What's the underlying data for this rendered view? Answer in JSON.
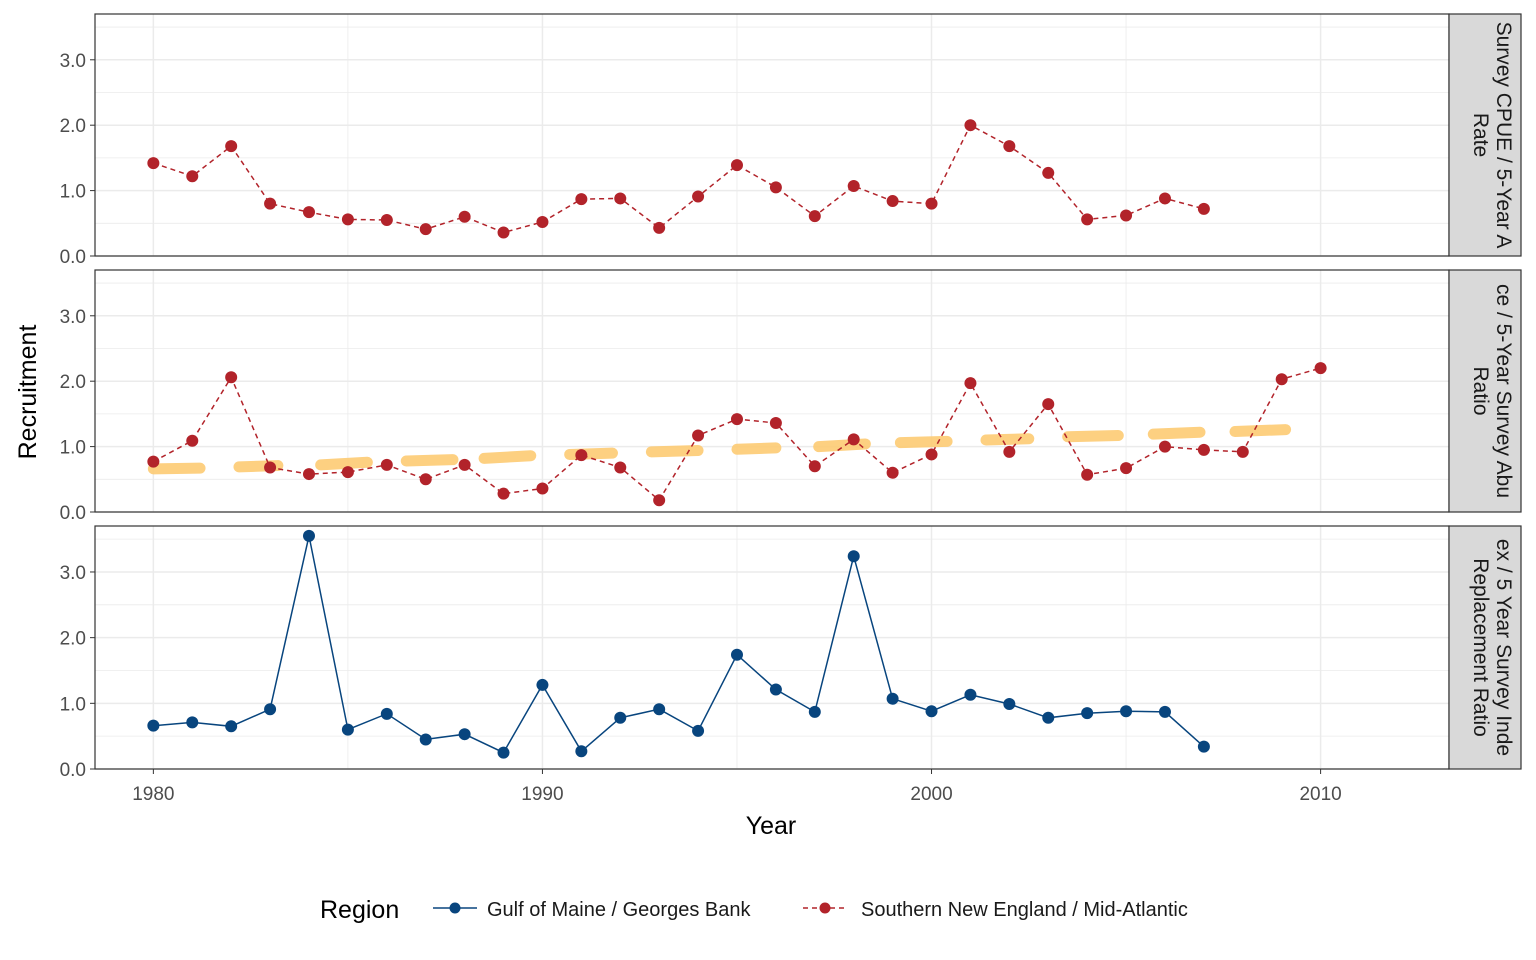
{
  "chart_data": {
    "type": "line",
    "xlabel": "Year",
    "ylabel": "Recruitment",
    "xlim": [
      1978.5,
      2013.3
    ],
    "ylim": [
      0,
      3.7
    ],
    "x_ticks": [
      1980,
      1990,
      2000,
      2010
    ],
    "x_tick_labels": [
      "1980",
      "1990",
      "2000",
      "2010"
    ],
    "y_ticks": [
      0,
      1,
      2,
      3
    ],
    "y_tick_labels": [
      "0.0",
      "1.0",
      "2.0",
      "3.0"
    ],
    "grid": true,
    "legend": {
      "title": "Region",
      "position": "bottom",
      "entries": [
        {
          "label": "Gulf of Maine / Georges Bank",
          "color": "#08457E",
          "line": "solid"
        },
        {
          "label": "Southern New England / Mid-Atlantic",
          "color": "#B2232A",
          "line": "dashed"
        }
      ]
    },
    "colors": {
      "gom": "#08457E",
      "sne": "#B2232A",
      "threshold": "#FDCB74",
      "strip_bg": "#D9D9D9",
      "grid": "#EBEBEB",
      "panel_border": "#333333"
    },
    "facets": [
      {
        "strip_lines": [
          "Survey CPUE / 5-Year A",
          "Rate"
        ],
        "series": [
          {
            "region": "Southern New England / Mid-Atlantic",
            "x": [
              1980,
              1981,
              1982,
              1983,
              1984,
              1985,
              1986,
              1987,
              1988,
              1989,
              1990,
              1991,
              1992,
              1993,
              1994,
              1995,
              1996,
              1997,
              1998,
              1999,
              2000,
              2001,
              2002,
              2003,
              2004,
              2005,
              2006,
              2007
            ],
            "y": [
              1.42,
              1.22,
              1.68,
              0.8,
              0.67,
              0.56,
              0.55,
              0.41,
              0.6,
              0.36,
              0.52,
              0.87,
              0.88,
              0.43,
              0.91,
              1.39,
              1.05,
              0.61,
              1.07,
              0.84,
              0.8,
              2.0,
              1.68,
              1.27,
              0.56,
              0.62,
              0.88,
              0.72
            ]
          }
        ]
      },
      {
        "strip_lines": [
          "ce / 5-Year Survey Abu",
          "Ratio"
        ],
        "threshold_segments": [
          {
            "x": [
              1980,
              1981.2
            ],
            "y": [
              0.66,
              0.67
            ]
          },
          {
            "x": [
              1982.2,
              1983.2
            ],
            "y": [
              0.69,
              0.71
            ]
          },
          {
            "x": [
              1984.3,
              1985.5
            ],
            "y": [
              0.72,
              0.76
            ]
          },
          {
            "x": [
              1986.5,
              1987.7
            ],
            "y": [
              0.78,
              0.8
            ]
          },
          {
            "x": [
              1988.5,
              1989.7
            ],
            "y": [
              0.82,
              0.86
            ]
          },
          {
            "x": [
              1990.7,
              1991.8
            ],
            "y": [
              0.88,
              0.9
            ]
          },
          {
            "x": [
              1992.8,
              1994.0
            ],
            "y": [
              0.92,
              0.94
            ]
          },
          {
            "x": [
              1995.0,
              1996.0
            ],
            "y": [
              0.96,
              0.98
            ]
          },
          {
            "x": [
              1997.1,
              1998.3
            ],
            "y": [
              1.0,
              1.04
            ]
          },
          {
            "x": [
              1999.2,
              2000.4
            ],
            "y": [
              1.06,
              1.08
            ]
          },
          {
            "x": [
              2001.4,
              2002.5
            ],
            "y": [
              1.1,
              1.12
            ]
          },
          {
            "x": [
              2003.5,
              2004.8
            ],
            "y": [
              1.15,
              1.17
            ]
          },
          {
            "x": [
              2005.7,
              2006.9
            ],
            "y": [
              1.19,
              1.22
            ]
          },
          {
            "x": [
              2007.8,
              2009.1
            ],
            "y": [
              1.23,
              1.26
            ]
          }
        ],
        "series": [
          {
            "region": "Southern New England / Mid-Atlantic",
            "x": [
              1980,
              1981,
              1982,
              1983,
              1984,
              1985,
              1986,
              1987,
              1988,
              1989,
              1990,
              1991,
              1992,
              1993,
              1994,
              1995,
              1996,
              1997,
              1998,
              1999,
              2000,
              2001,
              2002,
              2003,
              2004,
              2005,
              2006,
              2007,
              2008,
              2009,
              2010
            ],
            "y": [
              0.77,
              1.09,
              2.06,
              0.68,
              0.58,
              0.61,
              0.72,
              0.5,
              0.72,
              0.28,
              0.36,
              0.87,
              0.68,
              0.18,
              1.17,
              1.42,
              1.36,
              0.7,
              1.11,
              0.6,
              0.88,
              1.97,
              0.92,
              1.65,
              0.57,
              0.67,
              1.0,
              0.95,
              0.92,
              2.03,
              2.2
            ]
          }
        ]
      },
      {
        "strip_lines": [
          "ex / 5 Year Survey Inde",
          "Replacement Ratio"
        ],
        "series": [
          {
            "region": "Gulf of Maine / Georges Bank",
            "x": [
              1980,
              1981,
              1982,
              1983,
              1984,
              1985,
              1986,
              1987,
              1988,
              1989,
              1990,
              1991,
              1992,
              1993,
              1994,
              1995,
              1996,
              1997,
              1998,
              1999,
              2000,
              2001,
              2002,
              2003,
              2004,
              2005,
              2006,
              2007
            ],
            "y": [
              0.66,
              0.71,
              0.65,
              0.91,
              3.55,
              0.6,
              0.84,
              0.45,
              0.53,
              0.25,
              1.28,
              0.27,
              0.78,
              0.91,
              0.58,
              1.74,
              1.21,
              0.87,
              3.24,
              1.07,
              0.88,
              1.13,
              0.99,
              0.78,
              0.85,
              0.88,
              0.87,
              0.34
            ]
          }
        ]
      }
    ]
  }
}
